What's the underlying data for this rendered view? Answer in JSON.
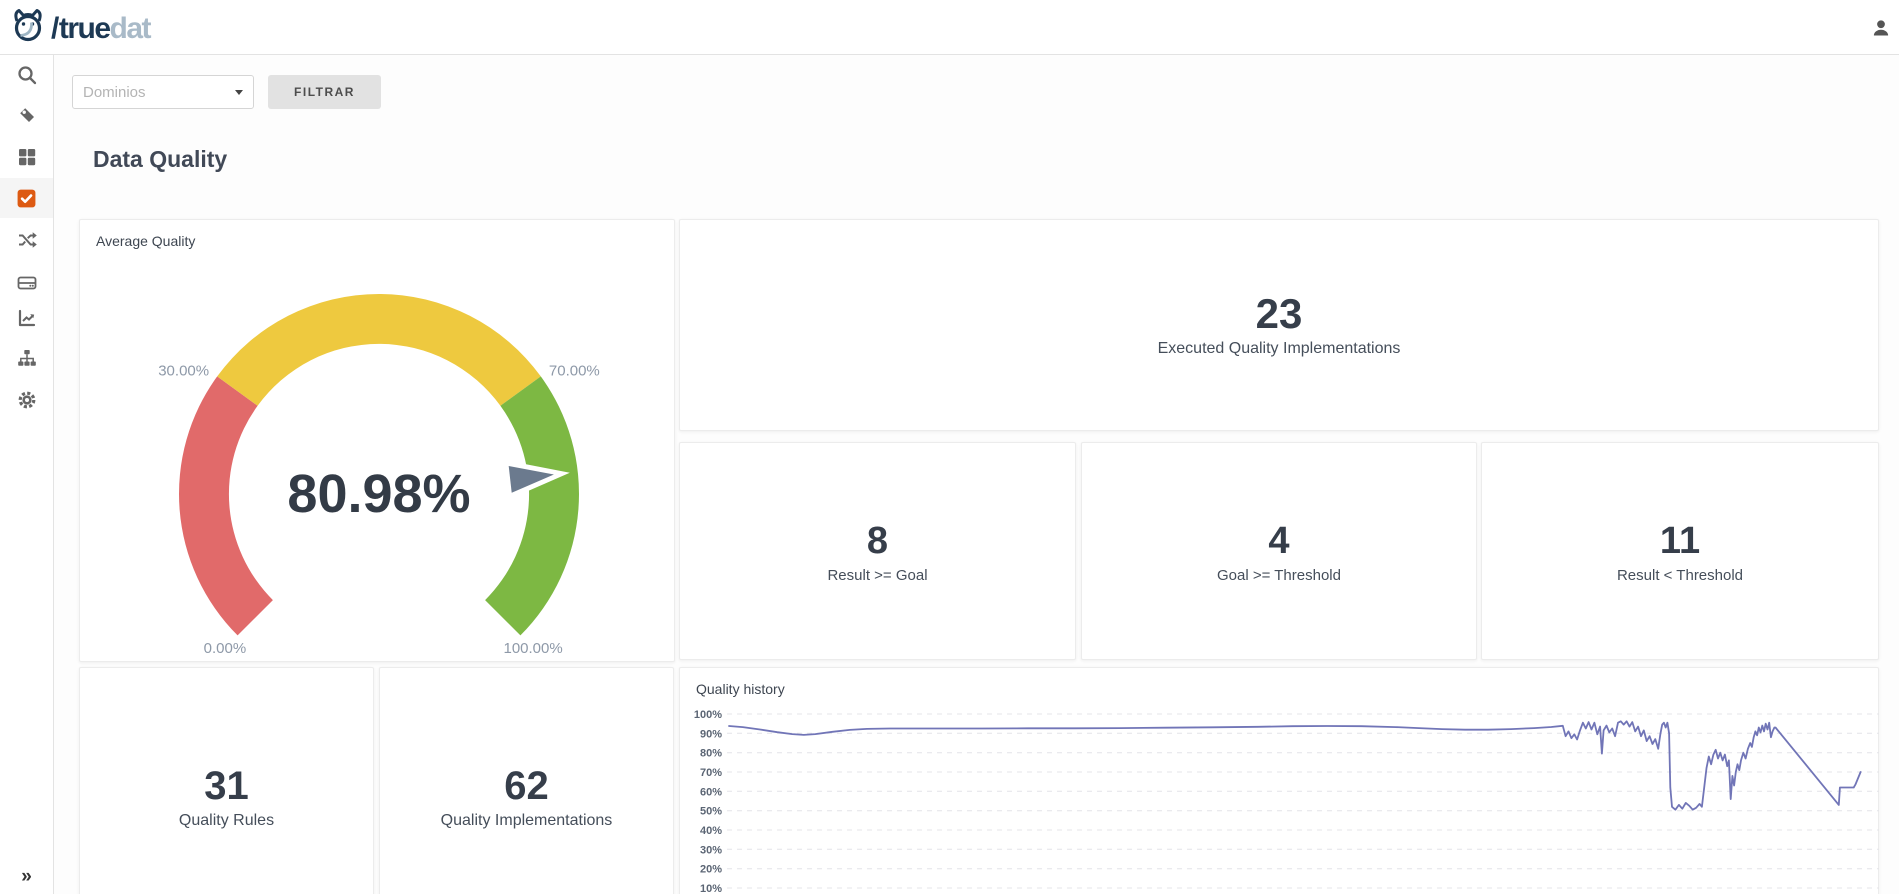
{
  "header": {
    "logo_true": "true",
    "logo_dat": "dat",
    "logo_slash": "/"
  },
  "sidebar": {
    "items": [
      {
        "name": "search"
      },
      {
        "name": "tags"
      },
      {
        "name": "dashboards"
      },
      {
        "name": "quality",
        "active": true
      },
      {
        "name": "lineage"
      },
      {
        "name": "data-sources"
      },
      {
        "name": "charts"
      },
      {
        "name": "structures"
      },
      {
        "name": "settings"
      }
    ],
    "collapse_icon": "»"
  },
  "filters": {
    "domain_placeholder": "Dominios",
    "filter_button": "FILTRAR"
  },
  "page": {
    "title": "Data Quality"
  },
  "stats": {
    "executed": {
      "value": "23",
      "label": "Executed Quality Implementations"
    },
    "result_goal": {
      "value": "8",
      "label": "Result >= Goal"
    },
    "goal_threshold": {
      "value": "4",
      "label": "Goal >= Threshold"
    },
    "result_threshold": {
      "value": "11",
      "label": "Result < Threshold"
    },
    "rules": {
      "value": "31",
      "label": "Quality Rules"
    },
    "implementations": {
      "value": "62",
      "label": "Quality Implementations"
    }
  },
  "colors": {
    "accent_orange": "#dd5a12",
    "logo_navy": "#1d3954",
    "logo_light": "#a9bac8",
    "gauge_red": "#e16a6a",
    "gauge_yellow": "#eec93f",
    "gauge_green": "#7db843",
    "gauge_pointer": "#6b7a8e",
    "history_line": "#7175b7"
  },
  "chart_data": [
    {
      "type": "gauge",
      "title": "Average Quality",
      "value": 80.98,
      "value_label": "80.98%",
      "min": 0,
      "max": 100,
      "start_angle": 225,
      "end_angle": -45,
      "segments": [
        {
          "from": 0,
          "to": 30,
          "color": "#e16a6a"
        },
        {
          "from": 30,
          "to": 70,
          "color": "#eec93f"
        },
        {
          "from": 70,
          "to": 100,
          "color": "#7db843"
        }
      ],
      "axis_labels": [
        {
          "value": 0,
          "label": "0.00%"
        },
        {
          "value": 30,
          "label": "30.00%"
        },
        {
          "value": 70,
          "label": "70.00%"
        },
        {
          "value": 100,
          "label": "100.00%"
        }
      ],
      "pointer_color": "#6b7a8e"
    },
    {
      "type": "line",
      "title": "Quality history",
      "ylabels": [
        "100%",
        "90%",
        "80%",
        "70%",
        "60%",
        "50%",
        "40%",
        "30%",
        "20%",
        "10%"
      ],
      "ymin": 10,
      "ymax": 100,
      "grid": "dashed-horizontal",
      "legend": "none",
      "xlabel": "",
      "ylabel": "",
      "line_color": "#7175b7",
      "points": [
        [
          0,
          93.8
        ],
        [
          0.012,
          93.2
        ],
        [
          0.027,
          92.0
        ],
        [
          0.042,
          90.6
        ],
        [
          0.055,
          89.6
        ],
        [
          0.065,
          89.2
        ],
        [
          0.075,
          89.6
        ],
        [
          0.09,
          90.8
        ],
        [
          0.105,
          91.8
        ],
        [
          0.12,
          92.3
        ],
        [
          0.14,
          92.5
        ],
        [
          0.18,
          92.5
        ],
        [
          0.22,
          92.5
        ],
        [
          0.26,
          92.6
        ],
        [
          0.3,
          92.6
        ],
        [
          0.34,
          92.7
        ],
        [
          0.38,
          92.9
        ],
        [
          0.42,
          93.1
        ],
        [
          0.46,
          93.4
        ],
        [
          0.49,
          93.7
        ],
        [
          0.52,
          93.8
        ],
        [
          0.55,
          93.7
        ],
        [
          0.58,
          93.2
        ],
        [
          0.6,
          92.7
        ],
        [
          0.62,
          92.2
        ],
        [
          0.64,
          91.9
        ],
        [
          0.66,
          91.9
        ],
        [
          0.68,
          92.2
        ],
        [
          0.7,
          92.7
        ],
        [
          0.715,
          93.3
        ],
        [
          0.725,
          93.9
        ],
        [
          0.7275,
          88.5
        ],
        [
          0.73,
          91
        ],
        [
          0.7325,
          87.5
        ],
        [
          0.735,
          89.5
        ],
        [
          0.7375,
          86.8
        ],
        [
          0.74,
          91.5
        ],
        [
          0.7425,
          95.5
        ],
        [
          0.745,
          92.5
        ],
        [
          0.7475,
          95.8
        ],
        [
          0.75,
          92
        ],
        [
          0.7525,
          95.5
        ],
        [
          0.755,
          89.5
        ],
        [
          0.7575,
          93.5
        ],
        [
          0.759,
          79.5
        ],
        [
          0.7605,
          91.5
        ],
        [
          0.763,
          94
        ],
        [
          0.7655,
          90.5
        ],
        [
          0.768,
          92.5
        ],
        [
          0.7705,
          88.5
        ],
        [
          0.773,
          95.5
        ],
        [
          0.7755,
          96.2
        ],
        [
          0.778,
          94.5
        ],
        [
          0.7805,
          96.2
        ],
        [
          0.783,
          93.5
        ],
        [
          0.7855,
          95.8
        ],
        [
          0.788,
          91
        ],
        [
          0.7905,
          93.5
        ],
        [
          0.793,
          88.5
        ],
        [
          0.7955,
          91.5
        ],
        [
          0.798,
          86
        ],
        [
          0.8005,
          88.5
        ],
        [
          0.803,
          84.5
        ],
        [
          0.8055,
          87
        ],
        [
          0.808,
          82
        ],
        [
          0.81,
          90
        ],
        [
          0.8115,
          94.5
        ],
        [
          0.813,
          95.5
        ],
        [
          0.8145,
          93
        ],
        [
          0.816,
          95.5
        ],
        [
          0.8175,
          90
        ],
        [
          0.8185,
          62
        ],
        [
          0.82,
          52
        ],
        [
          0.823,
          50.5
        ],
        [
          0.826,
          53
        ],
        [
          0.829,
          51
        ],
        [
          0.832,
          54
        ],
        [
          0.835,
          52.5
        ],
        [
          0.838,
          50.5
        ],
        [
          0.841,
          51.5
        ],
        [
          0.844,
          53.5
        ],
        [
          0.846,
          52
        ],
        [
          0.848,
          62
        ],
        [
          0.85,
          72
        ],
        [
          0.852,
          78
        ],
        [
          0.854,
          74
        ],
        [
          0.856,
          79
        ],
        [
          0.858,
          81.5
        ],
        [
          0.86,
          77
        ],
        [
          0.862,
          80
        ],
        [
          0.864,
          76
        ],
        [
          0.866,
          79
        ],
        [
          0.868,
          73
        ],
        [
          0.8695,
          76
        ],
        [
          0.871,
          56
        ],
        [
          0.8725,
          68
        ],
        [
          0.874,
          63
        ],
        [
          0.8755,
          70
        ],
        [
          0.877,
          74
        ],
        [
          0.8785,
          71
        ],
        [
          0.88,
          76
        ],
        [
          0.882,
          80
        ],
        [
          0.884,
          77
        ],
        [
          0.886,
          82
        ],
        [
          0.888,
          85
        ],
        [
          0.8895,
          83
        ],
        [
          0.891,
          88
        ],
        [
          0.8925,
          91
        ],
        [
          0.894,
          89
        ],
        [
          0.8955,
          93
        ],
        [
          0.897,
          90.5
        ],
        [
          0.8985,
          94
        ],
        [
          0.9,
          91
        ],
        [
          0.9015,
          95
        ],
        [
          0.903,
          92
        ],
        [
          0.9045,
          95.5
        ],
        [
          0.906,
          88
        ],
        [
          0.9075,
          91
        ],
        [
          0.909,
          93
        ],
        [
          0.91,
          93
        ],
        [
          0.965,
          53
        ],
        [
          0.966,
          62
        ],
        [
          0.978,
          62
        ],
        [
          0.9795,
          63.5
        ],
        [
          0.984,
          70
        ]
      ]
    }
  ]
}
